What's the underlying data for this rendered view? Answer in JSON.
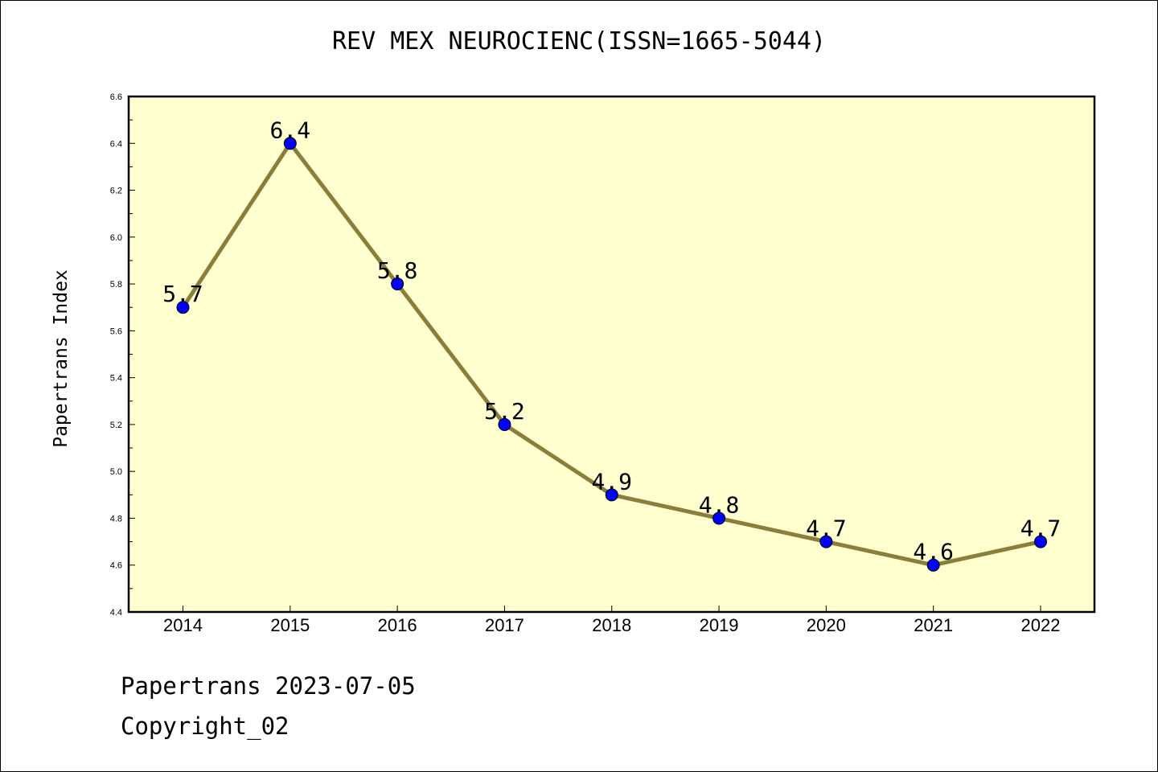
{
  "chart_data": {
    "type": "line",
    "title": "REV MEX NEUROCIENC(ISSN=1665-5044)",
    "xlabel": "",
    "ylabel": "Papertrans Index",
    "categories": [
      "2014",
      "2015",
      "2016",
      "2017",
      "2018",
      "2019",
      "2020",
      "2021",
      "2022"
    ],
    "series": [
      {
        "values": [
          5.7,
          6.4,
          5.8,
          5.2,
          4.9,
          4.8,
          4.7,
          4.6,
          4.7
        ],
        "data_labels": [
          "5.7",
          "6.4",
          "5.8",
          "5.2",
          "4.9",
          "4.8",
          "4.7",
          "4.6",
          "4.7"
        ]
      }
    ],
    "ylim": [
      4.4,
      6.6
    ],
    "yticks": [
      "4.4",
      "4.6",
      "4.8",
      "5.0",
      "5.2",
      "5.4",
      "5.6",
      "5.8",
      "6.0",
      "6.2",
      "6.4",
      "6.6"
    ],
    "grid": false,
    "colors": {
      "plot_background": "#ffffd0",
      "line": "#8b7d3a",
      "marker": "#0000ff"
    }
  },
  "footer": {
    "date_line": "Papertrans 2023-07-05",
    "copyright_line": "Copyright_02"
  }
}
